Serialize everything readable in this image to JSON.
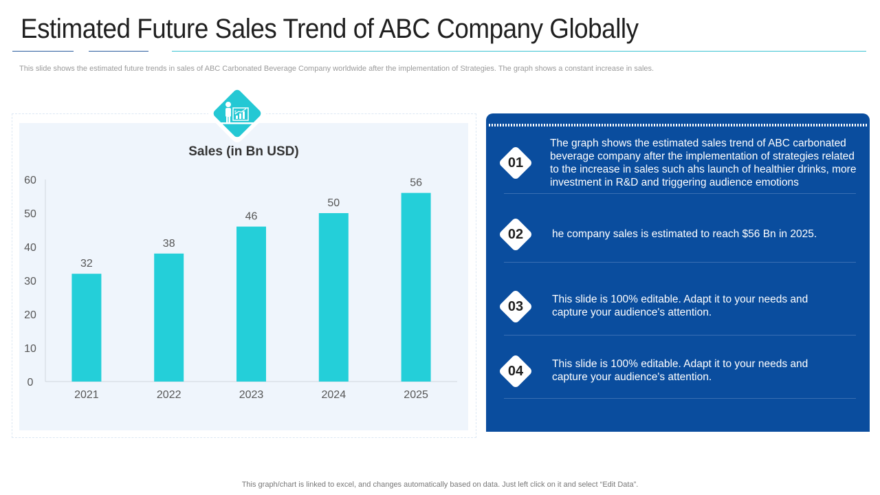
{
  "slide": {
    "title": "Estimated Future Sales Trend of ABC Company Globally",
    "subtitle": "This slide shows the estimated future trends in sales of ABC Carbonated Beverage Company worldwide after the implementation of Strategies. The graph shows a constant increase in sales.",
    "footer": "This graph/chart is linked to excel, and changes automatically based on data. Just left click on it and select “Edit Data”.",
    "badge_icon": "presenter-chart-icon",
    "colors": {
      "accent": "#24c8d4",
      "panel": "#0a4d9e",
      "chart_bg": "#eff5fc"
    }
  },
  "chart_data": {
    "type": "bar",
    "title": "Sales (in Bn USD)",
    "categories": [
      "2021",
      "2022",
      "2023",
      "2024",
      "2025"
    ],
    "values": [
      32,
      38,
      46,
      50,
      56
    ],
    "ylim": [
      0,
      60
    ],
    "yticks": [
      0,
      10,
      20,
      30,
      40,
      50,
      60
    ],
    "xlabel": "",
    "ylabel": "",
    "grid": false,
    "data_labels": true,
    "bar_color": "#24cfd9"
  },
  "points": [
    {
      "number": "01",
      "text": "The graph shows the estimated sales trend of ABC carbonated beverage company after the implementation of strategies related to the increase in sales such ahs launch of healthier drinks, more investment in R&D and triggering audience emotions"
    },
    {
      "number": "02",
      "text": "he company sales is estimated to reach $56 Bn in 2025."
    },
    {
      "number": "03",
      "text": "This slide is 100% editable. Adapt it to your needs and capture your audience's attention."
    },
    {
      "number": "04",
      "text": "This slide is 100% editable. Adapt it to your needs and capture your audience's attention."
    }
  ]
}
